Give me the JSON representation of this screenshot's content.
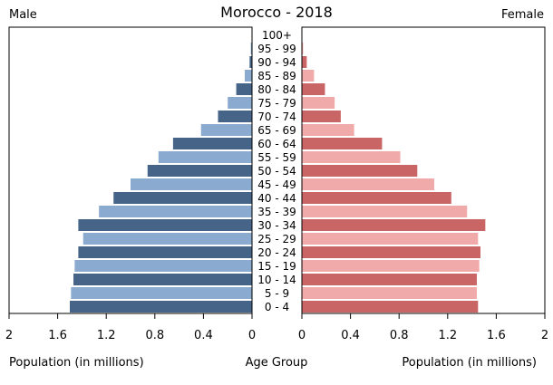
{
  "title": "Morocco - 2018",
  "male_label": "Male",
  "female_label": "Female",
  "xlabel_left": "Population (in millions)",
  "xlabel_center": "Age Group",
  "xlabel_right": "Population (in millions)",
  "colors": {
    "male_dark": "#466487",
    "male_light": "#8aaad0",
    "female_dark": "#c96565",
    "female_light": "#f0aaaa"
  },
  "chart_data": {
    "type": "bar",
    "orientation": "horizontal-pyramid",
    "categories": [
      "0 - 4",
      "5 - 9",
      "10 - 14",
      "15 - 19",
      "20 - 24",
      "25 - 29",
      "30 - 34",
      "35 - 39",
      "40 - 44",
      "45 - 49",
      "50 - 54",
      "55 - 59",
      "60 - 64",
      "65 - 69",
      "70 - 74",
      "75 - 79",
      "80 - 84",
      "85 - 89",
      "90 - 94",
      "95 - 99",
      "100+"
    ],
    "series": [
      {
        "name": "Male",
        "values": [
          1.5,
          1.49,
          1.47,
          1.46,
          1.43,
          1.39,
          1.43,
          1.26,
          1.14,
          1.0,
          0.86,
          0.77,
          0.65,
          0.42,
          0.28,
          0.2,
          0.13,
          0.06,
          0.02,
          0.01,
          0.0
        ]
      },
      {
        "name": "Female",
        "values": [
          1.45,
          1.44,
          1.44,
          1.46,
          1.47,
          1.45,
          1.51,
          1.36,
          1.23,
          1.09,
          0.95,
          0.81,
          0.66,
          0.43,
          0.32,
          0.27,
          0.19,
          0.1,
          0.04,
          0.01,
          0.0
        ]
      }
    ],
    "xlim": [
      0,
      2
    ],
    "ticks": [
      0,
      0.4,
      0.8,
      1.2,
      1.6,
      2
    ],
    "tick_labels": [
      "0",
      "0.4",
      "0.8",
      "1.2",
      "1.6",
      "2"
    ]
  }
}
